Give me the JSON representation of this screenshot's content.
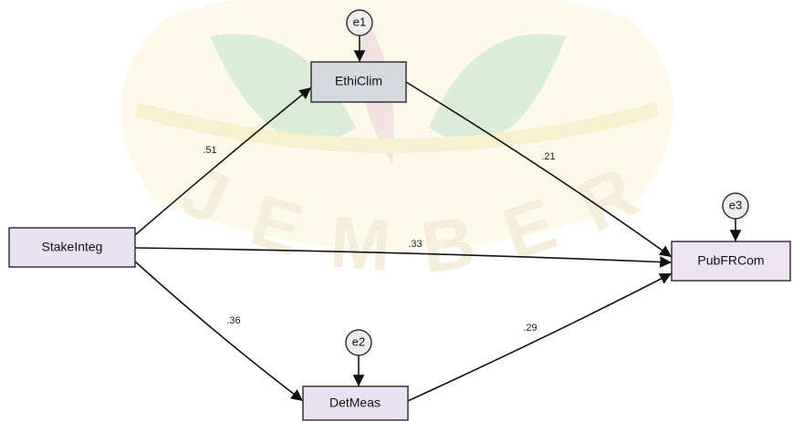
{
  "watermark": "JEMBER",
  "nodes": [
    {
      "label": "StakeInteg"
    },
    {
      "label": "EthiClim"
    },
    {
      "label": "DetMeas"
    },
    {
      "label": "PubFRCom"
    }
  ],
  "errors": [
    {
      "label": "e1"
    },
    {
      "label": "e2"
    },
    {
      "label": "e3"
    }
  ],
  "paths": [
    {
      "label": ".51"
    },
    {
      "label": ".21"
    },
    {
      "label": ".33"
    },
    {
      "label": ".36"
    },
    {
      "label": ".29"
    }
  ]
}
